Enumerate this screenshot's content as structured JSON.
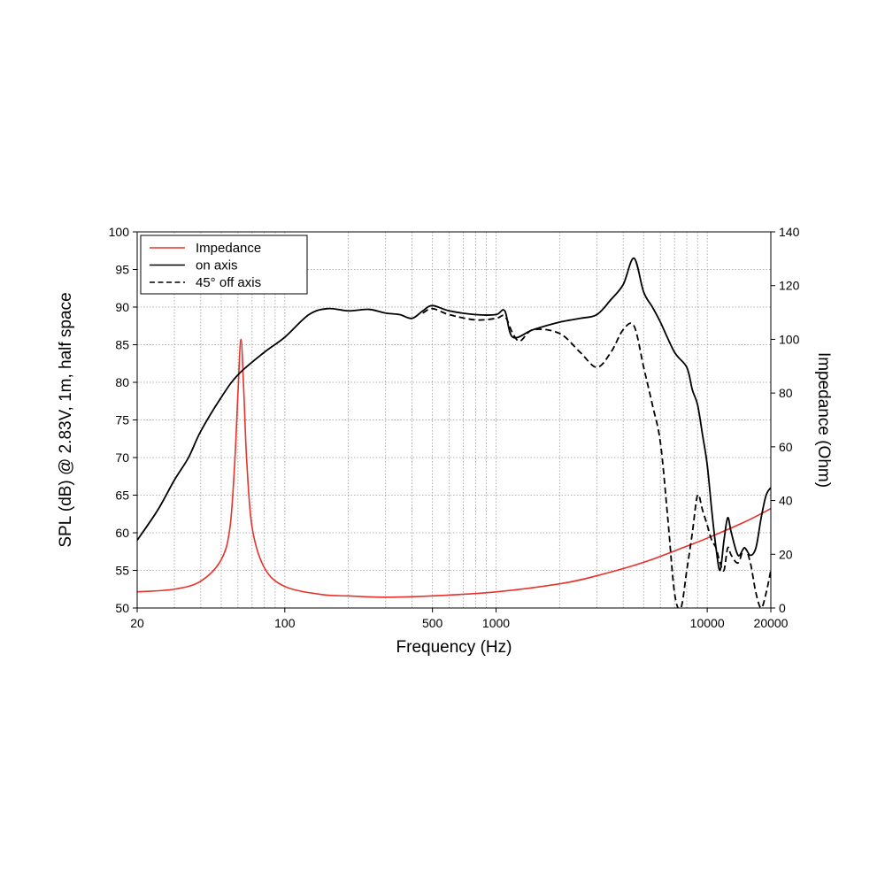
{
  "chart_data": {
    "type": "line",
    "xlabel": "Frequency (Hz)",
    "ylabel": "SPL (dB) @ 2.83V, 1m, half space",
    "y2label": "Impedance (Ohm)",
    "x_scale": "log",
    "xlim": [
      20,
      20000
    ],
    "ylim": [
      50,
      100
    ],
    "y2lim": [
      0,
      140
    ],
    "grid": true,
    "legend_position": "top-left",
    "x_tick_labels": [
      "20",
      "100",
      "500",
      "1000",
      "10000",
      "20000"
    ],
    "x_ticks": [
      20,
      100,
      500,
      1000,
      10000,
      20000
    ],
    "y_ticks": [
      50,
      55,
      60,
      65,
      70,
      75,
      80,
      85,
      90,
      95,
      100
    ],
    "y_tick_labels": [
      "50",
      "55",
      "60",
      "65",
      "70",
      "75",
      "80",
      "85",
      "90",
      "95",
      "100"
    ],
    "y2_ticks": [
      0,
      20,
      40,
      60,
      80,
      100,
      120,
      140
    ],
    "y2_tick_labels": [
      "0",
      "20",
      "40",
      "60",
      "80",
      "100",
      "120",
      "140"
    ],
    "series": [
      {
        "name": "Impedance",
        "axis": "right",
        "color": "#e8312a",
        "style": "solid",
        "points": [
          [
            20,
            6
          ],
          [
            30,
            7
          ],
          [
            40,
            10
          ],
          [
            50,
            18
          ],
          [
            55,
            30
          ],
          [
            58,
            55
          ],
          [
            60,
            80
          ],
          [
            62,
            100
          ],
          [
            64,
            80
          ],
          [
            66,
            55
          ],
          [
            70,
            30
          ],
          [
            80,
            15
          ],
          [
            100,
            8
          ],
          [
            150,
            5
          ],
          [
            200,
            4.5
          ],
          [
            300,
            4
          ],
          [
            500,
            4.5
          ],
          [
            1000,
            6
          ],
          [
            2000,
            9
          ],
          [
            3000,
            12
          ],
          [
            5000,
            17
          ],
          [
            8000,
            23
          ],
          [
            10000,
            26
          ],
          [
            15000,
            32
          ],
          [
            20000,
            37
          ]
        ]
      },
      {
        "name": "on axis",
        "axis": "left",
        "color": "#000000",
        "style": "solid",
        "points": [
          [
            20,
            59
          ],
          [
            25,
            63
          ],
          [
            30,
            67
          ],
          [
            35,
            70
          ],
          [
            40,
            73.5
          ],
          [
            50,
            78
          ],
          [
            60,
            81
          ],
          [
            80,
            84
          ],
          [
            100,
            86
          ],
          [
            130,
            89
          ],
          [
            160,
            89.8
          ],
          [
            200,
            89.5
          ],
          [
            250,
            89.7
          ],
          [
            300,
            89.2
          ],
          [
            350,
            89
          ],
          [
            400,
            88.5
          ],
          [
            450,
            89.5
          ],
          [
            500,
            90.2
          ],
          [
            600,
            89.5
          ],
          [
            800,
            89
          ],
          [
            1000,
            89
          ],
          [
            1100,
            89.5
          ],
          [
            1200,
            86
          ],
          [
            1500,
            87
          ],
          [
            2000,
            88
          ],
          [
            2500,
            88.5
          ],
          [
            3000,
            89
          ],
          [
            3500,
            91
          ],
          [
            4000,
            93
          ],
          [
            4500,
            96.5
          ],
          [
            5000,
            92
          ],
          [
            5500,
            90
          ],
          [
            6000,
            88
          ],
          [
            7000,
            84
          ],
          [
            8000,
            82
          ],
          [
            8500,
            79
          ],
          [
            9000,
            77
          ],
          [
            9500,
            73
          ],
          [
            10000,
            69
          ],
          [
            10500,
            63
          ],
          [
            11000,
            58
          ],
          [
            11500,
            55
          ],
          [
            12000,
            59
          ],
          [
            12500,
            62
          ],
          [
            13000,
            60
          ],
          [
            14000,
            57
          ],
          [
            15000,
            58
          ],
          [
            16000,
            57
          ],
          [
            17000,
            58
          ],
          [
            18000,
            62
          ],
          [
            19000,
            65
          ],
          [
            20000,
            66
          ]
        ]
      },
      {
        "name": "45° off axis",
        "axis": "left",
        "color": "#000000",
        "style": "dashed",
        "points": [
          [
            450,
            89.2
          ],
          [
            500,
            89.8
          ],
          [
            600,
            89
          ],
          [
            800,
            88.3
          ],
          [
            1000,
            88.5
          ],
          [
            1100,
            88.8
          ],
          [
            1200,
            86.5
          ],
          [
            1300,
            85.5
          ],
          [
            1500,
            87
          ],
          [
            2000,
            86.5
          ],
          [
            2500,
            84
          ],
          [
            3000,
            82
          ],
          [
            3500,
            84
          ],
          [
            4000,
            87
          ],
          [
            4500,
            87.5
          ],
          [
            5000,
            82
          ],
          [
            5500,
            77
          ],
          [
            6000,
            72
          ],
          [
            6500,
            62
          ],
          [
            7000,
            52
          ],
          [
            7500,
            50
          ],
          [
            8000,
            55
          ],
          [
            8500,
            60
          ],
          [
            9000,
            65
          ],
          [
            9500,
            63
          ],
          [
            10000,
            61
          ],
          [
            10500,
            59
          ],
          [
            11000,
            58
          ],
          [
            11500,
            56
          ],
          [
            12000,
            55
          ],
          [
            12500,
            58
          ],
          [
            13000,
            57
          ],
          [
            14000,
            56
          ],
          [
            15000,
            58
          ],
          [
            16000,
            56
          ],
          [
            17000,
            52
          ],
          [
            18000,
            50
          ],
          [
            19000,
            52
          ],
          [
            20000,
            55
          ]
        ]
      }
    ]
  }
}
